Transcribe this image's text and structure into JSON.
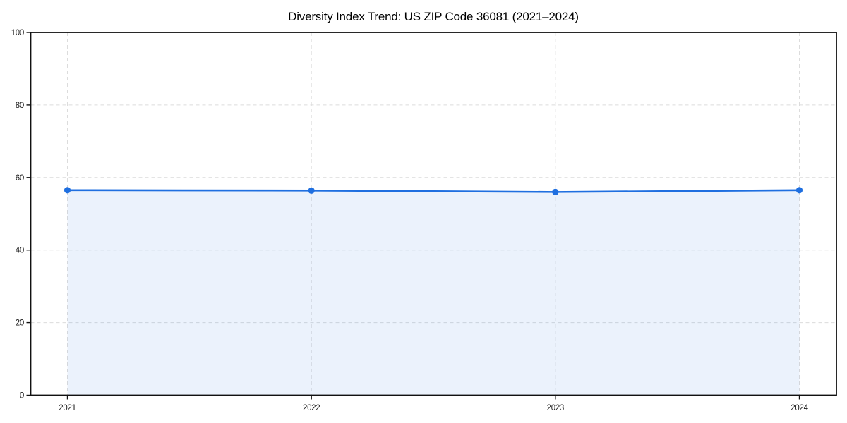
{
  "title": "Diversity Index Trend: US ZIP Code 36081 (2021–2024)",
  "chart_data": {
    "type": "area",
    "title": "Diversity Index Trend: US ZIP Code 36081 (2021–2024)",
    "categories": [
      "2021",
      "2022",
      "2023",
      "2024"
    ],
    "values": [
      56.5,
      56.4,
      56.0,
      56.5
    ],
    "xlabel": "",
    "ylabel": "",
    "ylim": [
      0,
      100
    ],
    "yticks": [
      0,
      20,
      40,
      60,
      80,
      100
    ],
    "grid": "dashed-both-axes",
    "legend": "none",
    "colors": {
      "line": "#1f6fe0",
      "marker": "#1f6fe0",
      "fill": "rgba(31, 111, 224, 0.09)",
      "grid": "#dcdcdc",
      "spine": "#111111",
      "tick_label": "#1a1a1a",
      "background": "#ffffff"
    }
  }
}
